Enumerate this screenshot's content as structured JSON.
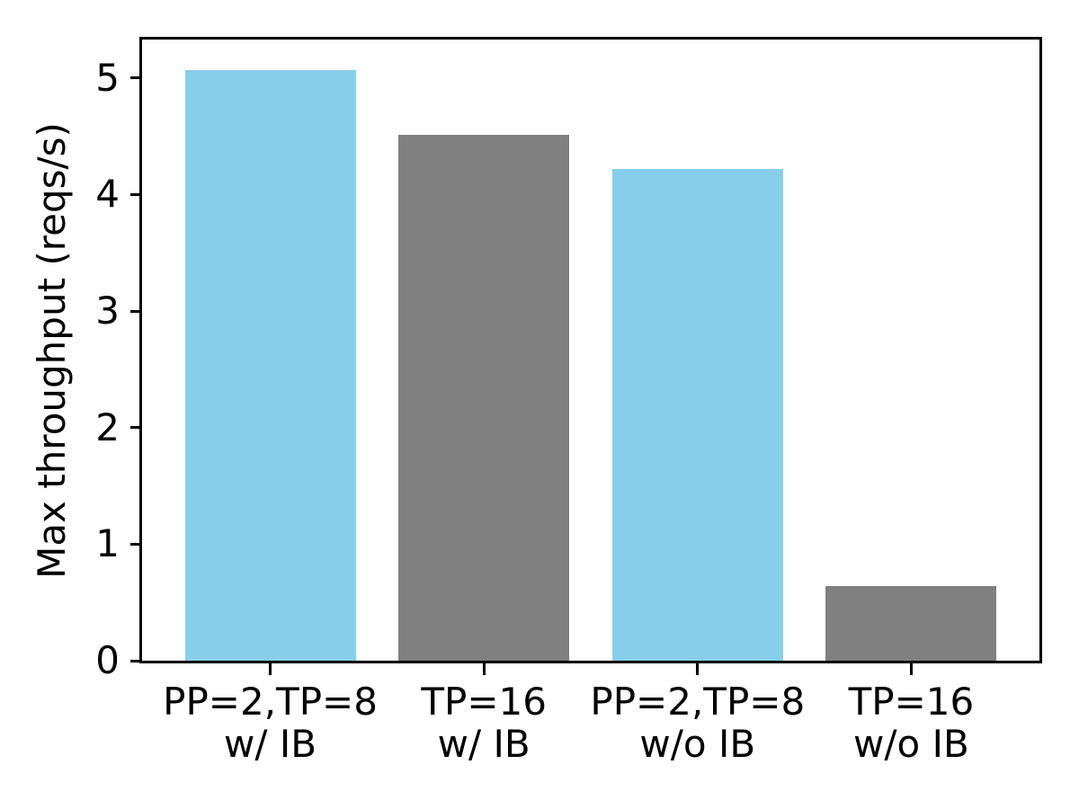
{
  "chart_data": {
    "type": "bar",
    "title": "",
    "xlabel": "",
    "ylabel": "Max throughput (reqs/s)",
    "categories": [
      {
        "line1": "PP=2,TP=8",
        "line2": "w/ IB"
      },
      {
        "line1": "TP=16",
        "line2": "w/ IB"
      },
      {
        "line1": "PP=2,TP=8",
        "line2": "w/o IB"
      },
      {
        "line1": "TP=16",
        "line2": "w/o IB"
      }
    ],
    "values": [
      5.07,
      4.51,
      4.22,
      0.64
    ],
    "bar_colors": [
      "#87CEEB",
      "#808080",
      "#87CEEB",
      "#808080"
    ],
    "yticks": [
      0,
      1,
      2,
      3,
      4,
      5
    ],
    "ylim": [
      0,
      5.33
    ],
    "bar_width_units": 0.8,
    "grid": false,
    "legend": "none",
    "axis_color": "#000000",
    "background_color": "#FFFFFF"
  }
}
